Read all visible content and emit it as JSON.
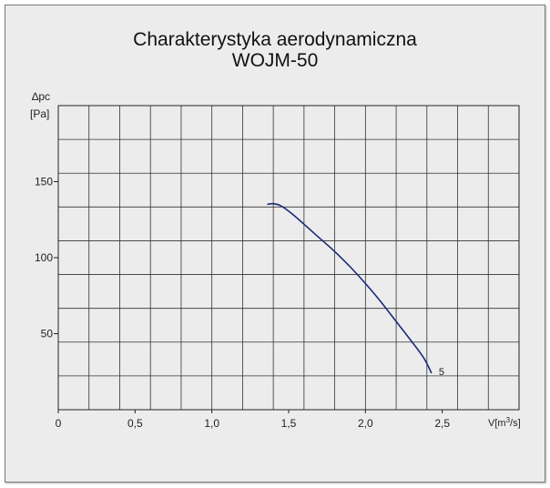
{
  "chart_data": {
    "type": "line",
    "title": "Charakterystyka aerodynamiczna",
    "subtitle": "WOJM-50",
    "ylabel": "∆pc",
    "yunit": "[Pa]",
    "xlabel": "V[m³/s]",
    "xlim": [
      0,
      3.0
    ],
    "ylim": [
      0,
      200
    ],
    "x_ticks": [
      {
        "value": 0,
        "label": "0"
      },
      {
        "value": 0.5,
        "label": "0,5"
      },
      {
        "value": 1.0,
        "label": "1,0"
      },
      {
        "value": 1.5,
        "label": "1,5"
      },
      {
        "value": 2.0,
        "label": "2,0"
      },
      {
        "value": 2.5,
        "label": "2,5"
      }
    ],
    "y_ticks": [
      {
        "value": 50,
        "label": "50"
      },
      {
        "value": 100,
        "label": "100"
      },
      {
        "value": 150,
        "label": "150"
      }
    ],
    "grid": true,
    "series": [
      {
        "name": "5",
        "color": "#1a2a7a",
        "points": [
          [
            1.36,
            135
          ],
          [
            1.4,
            135.5
          ],
          [
            1.45,
            134
          ],
          [
            1.52,
            129
          ],
          [
            1.6,
            122
          ],
          [
            1.7,
            113
          ],
          [
            1.8,
            104
          ],
          [
            1.9,
            94
          ],
          [
            2.0,
            83
          ],
          [
            2.1,
            71
          ],
          [
            2.2,
            58
          ],
          [
            2.3,
            45
          ],
          [
            2.38,
            34
          ],
          [
            2.43,
            24
          ]
        ]
      }
    ]
  }
}
